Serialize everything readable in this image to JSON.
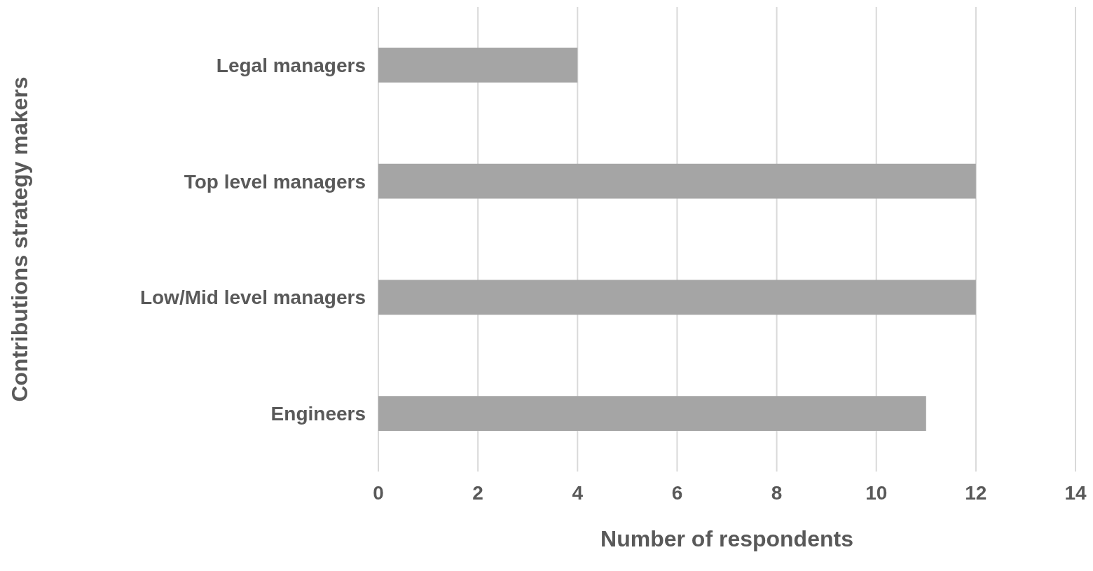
{
  "chart_data": {
    "type": "bar",
    "orientation": "horizontal",
    "xlabel": "Number of respondents",
    "ylabel": "Contributions strategy makers",
    "categories": [
      "Legal managers",
      "Top level managers",
      "Low/Mid level managers",
      "Engineers"
    ],
    "values": [
      4,
      12,
      12,
      11
    ],
    "color": "#a5a5a5",
    "xlim": [
      0,
      14
    ],
    "xticks": [
      0,
      2,
      4,
      6,
      8,
      10,
      12,
      14
    ],
    "grid": "x"
  }
}
